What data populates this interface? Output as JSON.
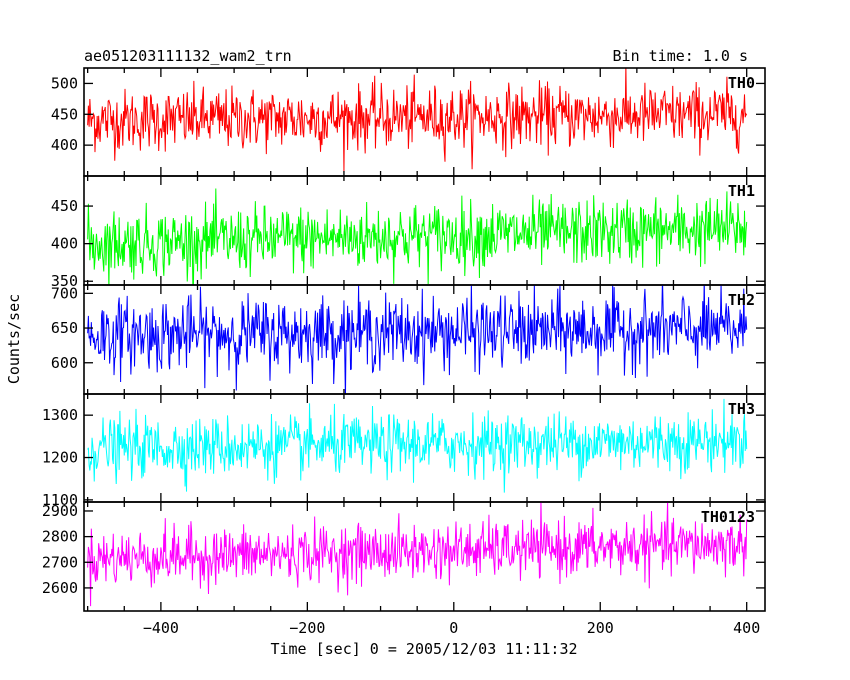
{
  "chart_data": {
    "type": "line",
    "title": "ae051203111132_wam2_trn",
    "bin_time_label": "Bin time: 1.0 s",
    "xlabel": "Time [sec] 0 = 2005/12/03 11:11:32",
    "ylabel": "Counts/sec",
    "xlim": [
      -505,
      425
    ],
    "x_range_data": [
      -500,
      400
    ],
    "x_ticks": [
      -400,
      -200,
      0,
      200,
      400
    ],
    "x_tick_labels": [
      "−400",
      "−200",
      "0",
      "200",
      "400"
    ],
    "bin_seconds": 1.0,
    "grid": false,
    "panels": [
      {
        "name": "TH0",
        "color": "#ff0000",
        "ylim": [
          350,
          525
        ],
        "y_ticks": [
          400,
          450,
          500
        ],
        "y_tick_labels": [
          "400",
          "450",
          "500"
        ],
        "mean_start": 440,
        "mean_end": 450,
        "noise_sd": 25
      },
      {
        "name": "TH1",
        "color": "#00ff00",
        "ylim": [
          345,
          490
        ],
        "y_ticks": [
          350,
          400,
          450
        ],
        "y_tick_labels": [
          "350",
          "400",
          "450"
        ],
        "mean_start": 400,
        "mean_end": 420,
        "noise_sd": 22
      },
      {
        "name": "TH2",
        "color": "#0000ff",
        "ylim": [
          555,
          712
        ],
        "y_ticks": [
          600,
          650,
          700
        ],
        "y_tick_labels": [
          "600",
          "650",
          "700"
        ],
        "mean_start": 640,
        "mean_end": 648,
        "noise_sd": 26
      },
      {
        "name": "TH3",
        "color": "#00ffff",
        "ylim": [
          1095,
          1350
        ],
        "y_ticks": [
          1100,
          1200,
          1300
        ],
        "y_tick_labels": [
          "1100",
          "1200",
          "1300"
        ],
        "mean_start": 1222,
        "mean_end": 1240,
        "noise_sd": 35
      },
      {
        "name": "TH0123",
        "color": "#ff00ff",
        "ylim": [
          2510,
          2935
        ],
        "y_ticks": [
          2600,
          2700,
          2800,
          2900
        ],
        "y_tick_labels": [
          "2600",
          "2700",
          "2800",
          "2900"
        ],
        "mean_start": 2715,
        "mean_end": 2770,
        "noise_sd": 55
      }
    ]
  }
}
